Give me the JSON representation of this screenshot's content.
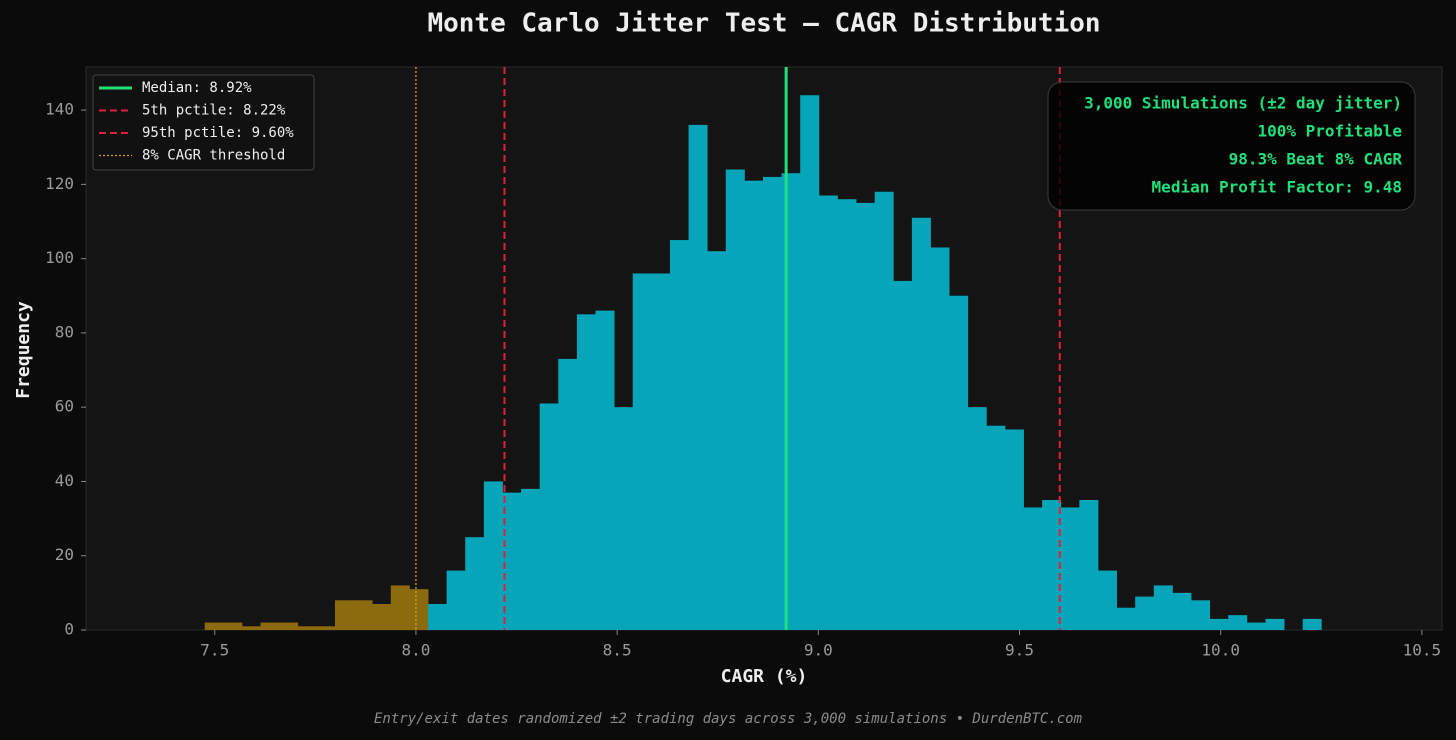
{
  "chart_data": {
    "type": "histogram",
    "title": "Monte Carlo Jitter Test — CAGR Distribution",
    "xlabel": "CAGR (%)",
    "ylabel": "Frequency",
    "footer": "Entry/exit dates randomized ±2 trading days across 3,000 simulations  •  DurdenBTC.com",
    "bins": [
      7.475,
      7.52125,
      7.5675,
      7.61375,
      7.66,
      7.70625,
      7.7525,
      7.79875,
      7.845,
      7.89125,
      7.9375,
      7.98375,
      8.03,
      8.07625,
      8.1225,
      8.16875,
      8.215,
      8.26125,
      8.3075,
      8.35375,
      8.4,
      8.44625,
      8.4925,
      8.53875,
      8.585,
      8.63125,
      8.6775,
      8.72375,
      8.77,
      8.81625,
      8.8625,
      8.90875,
      8.955,
      9.00125,
      9.0475,
      9.09375,
      9.14,
      9.18625,
      9.2325,
      9.27875,
      9.325,
      9.37125,
      9.4175,
      9.46375,
      9.51,
      9.55625,
      9.6025,
      9.64875,
      9.695,
      9.74125,
      9.7875,
      9.83375,
      9.88,
      9.92625,
      9.9725,
      10.01875,
      10.065,
      10.11125,
      10.1575,
      10.20375,
      10.25
    ],
    "counts": [
      2,
      2,
      1,
      2,
      2,
      1,
      1,
      8,
      8,
      7,
      12,
      11,
      7,
      16,
      25,
      40,
      37,
      38,
      61,
      73,
      85,
      86,
      60,
      96,
      96,
      105,
      136,
      102,
      124,
      121,
      122,
      123,
      144,
      117,
      116,
      115,
      118,
      94,
      111,
      103,
      90,
      60,
      55,
      54,
      33,
      35,
      33,
      35,
      16,
      6,
      9,
      12,
      10,
      8,
      3,
      4,
      2,
      3,
      0,
      3
    ],
    "color": "#06a5b9",
    "below_threshold_color": "#8c6a0e",
    "threshold": 8,
    "vlines": [
      {
        "name": "Median: 8.92%",
        "value": 8.92,
        "color": "#1fe07a",
        "style": "solid"
      },
      {
        "name": "5th pctile: 8.22%",
        "value": 8.22,
        "color": "#e0203c",
        "style": "dashed"
      },
      {
        "name": "95th pctile: 9.60%",
        "value": 9.6,
        "color": "#e0203c",
        "style": "dashed"
      },
      {
        "name": "8% CAGR threshold",
        "value": 8,
        "color": "#d4a017",
        "style": "dotted"
      }
    ],
    "annotations": [
      "3,000 Simulations (±2 day jitter)",
      "100% Profitable",
      "98.3% Beat 8% CAGR",
      "Median Profit Factor: 9.48"
    ],
    "xlim": [
      7.18,
      10.55
    ],
    "ylim": [
      0,
      151.6
    ],
    "xticks": [
      7.5,
      {
        "value": 8,
        "label": "8.0"
      },
      8.5,
      {
        "value": 9,
        "label": "9.0"
      },
      9.5,
      {
        "value": 10,
        "label": "10.0"
      },
      10.5
    ],
    "yticks": [
      0,
      20,
      40,
      60,
      80,
      100,
      120,
      140
    ],
    "legend": "upper left"
  }
}
